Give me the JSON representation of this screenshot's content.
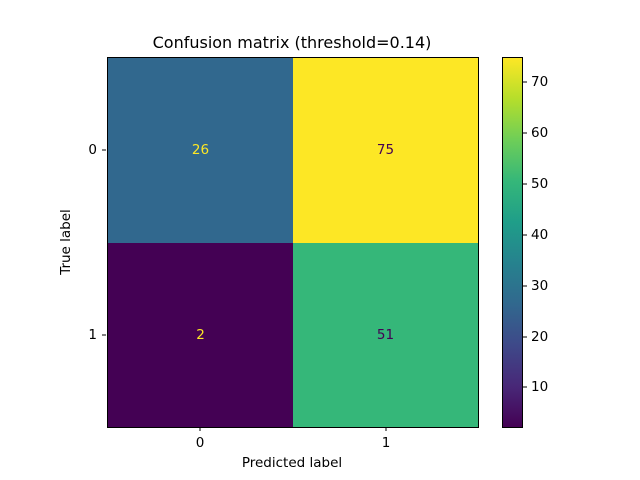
{
  "chart_data": {
    "type": "heatmap",
    "title": "Confusion matrix (threshold=0.14)",
    "xlabel": "Predicted label",
    "ylabel": "True label",
    "x_tick_labels": [
      "0",
      "1"
    ],
    "y_tick_labels": [
      "0",
      "1"
    ],
    "matrix": [
      [
        26,
        75
      ],
      [
        2,
        51
      ]
    ],
    "cell_colors": [
      [
        "#31688e",
        "#fde725"
      ],
      [
        "#440154",
        "#35b779"
      ]
    ],
    "cell_text_colors": [
      [
        "#fde725",
        "#440154"
      ],
      [
        "#fde725",
        "#440154"
      ]
    ],
    "colormap": "viridis",
    "vmin": 2,
    "vmax": 75,
    "colorbar_ticks": [
      10,
      20,
      30,
      40,
      50,
      60,
      70
    ],
    "colormap_stops": [
      "#440154",
      "#482878",
      "#3e4989",
      "#31688e",
      "#26828e",
      "#1f9e89",
      "#35b779",
      "#6ece58",
      "#b5de2b",
      "#fde725"
    ],
    "grid": false,
    "legend": "colorbar-right"
  }
}
